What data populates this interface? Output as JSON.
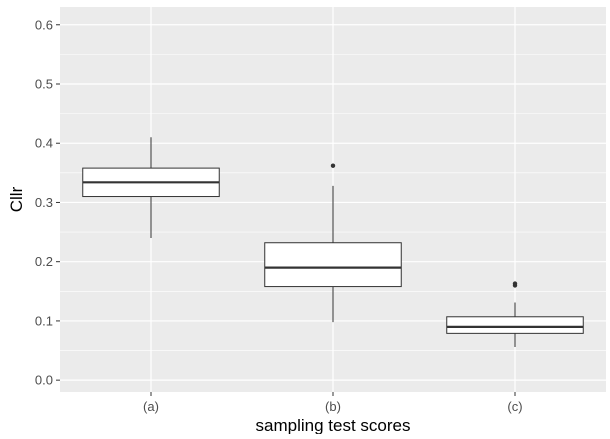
{
  "chart_data": {
    "type": "boxplot",
    "title": "",
    "xlabel": "sampling test scores",
    "ylabel": "Cllr",
    "ylim": [
      -0.02,
      0.63
    ],
    "yticks": [
      "0.0",
      "0.1",
      "0.2",
      "0.3",
      "0.4",
      "0.5",
      "0.6"
    ],
    "ytick_values": [
      0.0,
      0.1,
      0.2,
      0.3,
      0.4,
      0.5,
      0.6
    ],
    "categories": [
      "(a)",
      "(b)",
      "(c)"
    ],
    "boxes": [
      {
        "category": "(a)",
        "min": 0.24,
        "q1": 0.31,
        "median": 0.334,
        "q3": 0.358,
        "max": 0.41,
        "outliers": []
      },
      {
        "category": "(b)",
        "min": 0.098,
        "q1": 0.158,
        "median": 0.19,
        "q3": 0.232,
        "max": 0.328,
        "outliers": [
          0.362
        ]
      },
      {
        "category": "(c)",
        "min": 0.056,
        "q1": 0.079,
        "median": 0.09,
        "q3": 0.107,
        "max": 0.131,
        "outliers": [
          0.16,
          0.163
        ]
      }
    ],
    "grid": true,
    "legend": "none",
    "colors": {
      "panel_background": "#ebebeb",
      "grid_major": "#ffffff",
      "box_fill": "#ffffff",
      "box_line": "#333333"
    }
  }
}
